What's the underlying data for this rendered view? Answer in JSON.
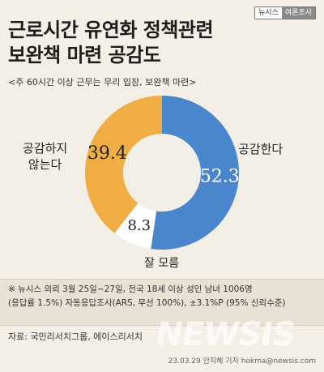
{
  "brand": {
    "left": "뉴시스",
    "right": "여론조사"
  },
  "header": {
    "title_line1": "근로시간 유연화 정책관련",
    "title_line2": "보완책 마련 공감도",
    "subtitle": "<주 60시간 이상 근무는 무리 입장, 보완책 마련>"
  },
  "chart_data": {
    "type": "pie",
    "title": "근로시간 유연화 정책관련 보완책 마련 공감도",
    "labels": [
      "공감한다",
      "잘 모름",
      "공감하지 않는다"
    ],
    "values": [
      52.3,
      8.3,
      39.4
    ],
    "colors": [
      "#4a86cc",
      "#ffffff",
      "#f0ad43"
    ],
    "start": "top",
    "direction": "clockwise",
    "donut": true
  },
  "labels": {
    "agree": "공감한다",
    "unsure": "잘 모름",
    "disagree_line1": "공감하지",
    "disagree_line2": "않는다"
  },
  "values_text": {
    "agree": "52.3",
    "unsure": "8.3",
    "disagree": "39.4"
  },
  "footnote": {
    "line1": "※ 뉴시스 의뢰 3월 25일~27일, 전국 18세 이상 성인 남녀 1006명",
    "line2": "(응답률 1.5%) 자동응답조사(ARS, 무선 100%), ±3.1%P (95% 신뢰수준)"
  },
  "source": "자료: 국민리서치그룹, 에이스리서치",
  "footer": "23.03.29 안지혜 기자 hokma@newsis.com",
  "watermark": "NEWSIS"
}
